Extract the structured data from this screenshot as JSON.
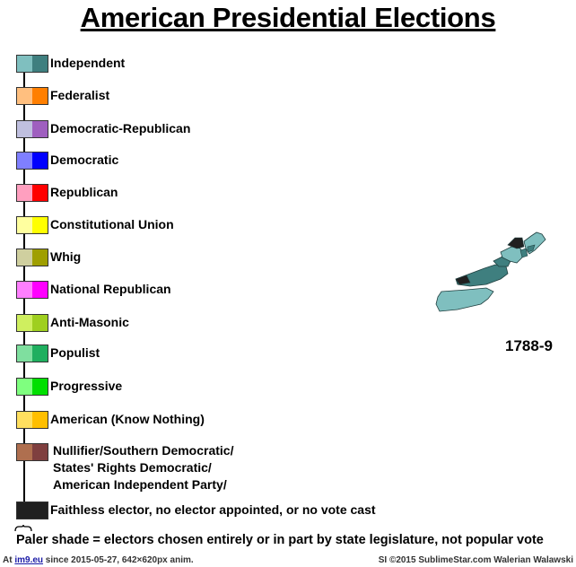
{
  "title": "American Presidential Elections",
  "legend": [
    {
      "label": "Independent",
      "colors": [
        "#7fbfbf",
        "#3f7f7f"
      ]
    },
    {
      "label": "Federalist",
      "colors": [
        "#ffbf7f",
        "#ff7f00"
      ]
    },
    {
      "label": "Democratic-Republican",
      "colors": [
        "#bfbfdf",
        "#9f5fbf"
      ]
    },
    {
      "label": "Democratic",
      "colors": [
        "#7f7fff",
        "#0000ff"
      ]
    },
    {
      "label": "Republican",
      "colors": [
        "#ff9fbf",
        "#ff0000"
      ]
    },
    {
      "label": "Constitutional Union",
      "colors": [
        "#ffff9f",
        "#ffff00"
      ]
    },
    {
      "label": "Whig",
      "colors": [
        "#cfcf9f",
        "#9f9f00"
      ]
    },
    {
      "label": "National Republican",
      "colors": [
        "#ff7fff",
        "#ff00ff"
      ]
    },
    {
      "label": "Anti-Masonic",
      "colors": [
        "#cfef5f",
        "#9fcf1f"
      ]
    },
    {
      "label": "Populist",
      "colors": [
        "#7fdf9f",
        "#1faf5f"
      ]
    },
    {
      "label": "Progressive",
      "colors": [
        "#7fff7f",
        "#00df00"
      ]
    },
    {
      "label": "American (Know Nothing)",
      "colors": [
        "#ffdf5f",
        "#ffbf00"
      ]
    },
    {
      "label": "Nullifier/Southern Democratic/\nStates' Rights Democratic/\nAmerican Independent Party/",
      "colors": [
        "#af6f4f",
        "#7f3f3f"
      ]
    },
    {
      "label": "Faithless elector, no elector appointed, or no vote cast",
      "colors": [
        "#202020",
        "#202020"
      ]
    }
  ],
  "year": "1788-9",
  "note": "Paler shade = electors chosen entirely or in part by state legislature, not popular vote",
  "footer": {
    "left_prefix": "At ",
    "left_link": "im9.eu",
    "left_suffix": " since 2015-05-27, 642×620px anim.",
    "right": "SI ©2015 SublimeStar.com Walerian Walawski"
  },
  "map_colors": {
    "light": "#7fbfbf",
    "dark": "#3f7f7f",
    "none": "#202020"
  }
}
